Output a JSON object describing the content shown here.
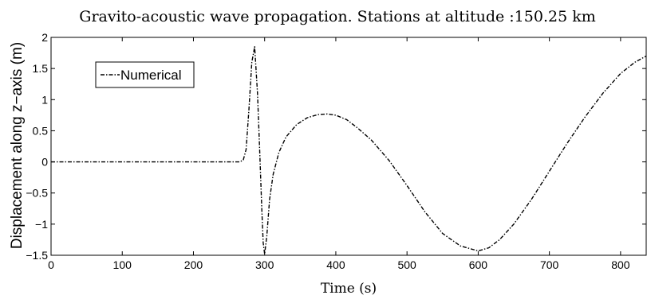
{
  "chart_data": {
    "type": "line",
    "title": "Gravito-acoustic wave propagation. Stations at altitude :150.25 km",
    "xlabel": "Time (s)",
    "ylabel": "Displacement along z−axis (m)",
    "xlim": [
      0,
      836
    ],
    "ylim": [
      -1.5,
      2
    ],
    "xticks": [
      0,
      100,
      200,
      300,
      400,
      500,
      600,
      700,
      800
    ],
    "xtick_labels": [
      "0",
      "100",
      "200",
      "300",
      "400",
      "500",
      "600",
      "700",
      "800"
    ],
    "yticks": [
      -1.5,
      -1,
      -0.5,
      0,
      0.5,
      1,
      1.5,
      2
    ],
    "ytick_labels": [
      "−1.5",
      "−1",
      "−0.5",
      "0",
      "0.5",
      "1",
      "1.5",
      "2"
    ],
    "grid": false,
    "legend_position": "top-left",
    "series": [
      {
        "name": "Numerical",
        "style": "dash-dot",
        "color": "#000000",
        "x": [
          0,
          100,
          200,
          265,
          270,
          274,
          278,
          282,
          286,
          290,
          293,
          296,
          298,
          300,
          303,
          307,
          312,
          320,
          330,
          345,
          360,
          375,
          388,
          400,
          415,
          430,
          450,
          475,
          500,
          525,
          550,
          575,
          600,
          615,
          630,
          650,
          675,
          700,
          725,
          750,
          775,
          800,
          820,
          836
        ],
        "y": [
          0,
          0,
          0,
          0,
          0.03,
          0.2,
          0.85,
          1.6,
          1.85,
          1.1,
          0.2,
          -0.75,
          -1.3,
          -1.48,
          -1.2,
          -0.6,
          -0.2,
          0.15,
          0.4,
          0.6,
          0.71,
          0.76,
          0.77,
          0.75,
          0.68,
          0.55,
          0.35,
          0.02,
          -0.38,
          -0.8,
          -1.15,
          -1.35,
          -1.43,
          -1.38,
          -1.25,
          -1.0,
          -0.6,
          -0.15,
          0.3,
          0.72,
          1.1,
          1.42,
          1.6,
          1.7
        ]
      }
    ]
  }
}
